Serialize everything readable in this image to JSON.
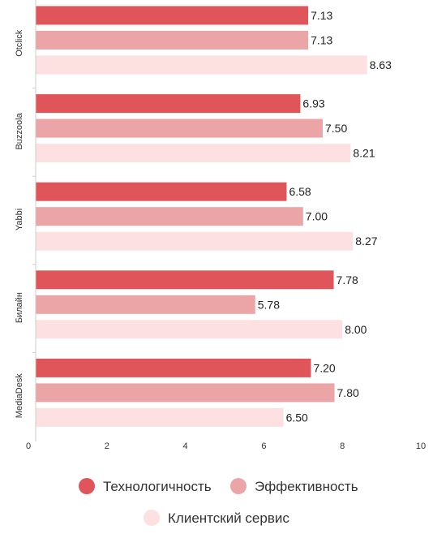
{
  "chart_data": {
    "type": "bar",
    "orientation": "horizontal",
    "categories": [
      "Otclick",
      "Buzzoola",
      "Yabbi",
      "Билайн",
      "MediaDesk"
    ],
    "series": [
      {
        "name": "Технологичность",
        "color": "#e05559",
        "values": [
          7.13,
          6.93,
          6.58,
          7.78,
          7.2
        ],
        "labels": [
          "7.13",
          "6.93",
          "6.58",
          "7.78",
          "7.20"
        ]
      },
      {
        "name": "Эффективность",
        "color": "#eba5a6",
        "values": [
          7.13,
          7.5,
          7.0,
          5.78,
          7.8
        ],
        "labels": [
          "7.13",
          "7.50",
          "7.00",
          "5.78",
          "7.80"
        ]
      },
      {
        "name": "Клиентский сервис",
        "color": "#fde0e1",
        "values": [
          8.63,
          8.21,
          8.27,
          8.0,
          6.5
        ],
        "labels": [
          "8.63",
          "8.21",
          "8.27",
          "8.00",
          "6.50"
        ]
      }
    ],
    "xlim": [
      0,
      10
    ],
    "x_ticks": [
      "0",
      "2",
      "4",
      "6",
      "8",
      "10"
    ],
    "grid": false,
    "legend_position": "bottom"
  }
}
